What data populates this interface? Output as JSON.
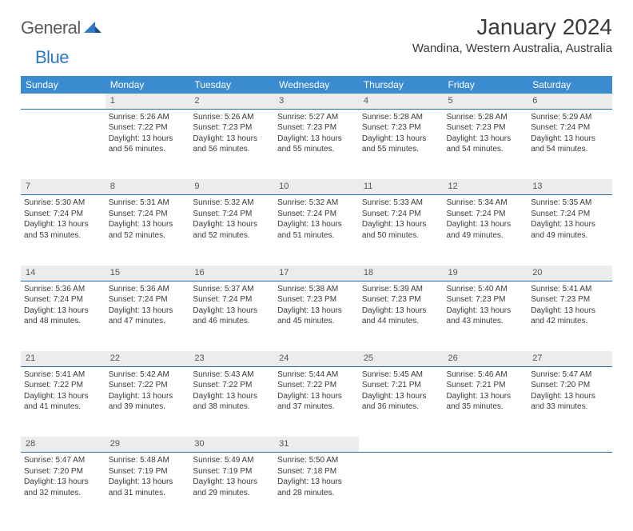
{
  "logo": {
    "text1": "General",
    "text2": "Blue"
  },
  "title": "January 2024",
  "subtitle": "Wandina, Western Australia, Australia",
  "colors": {
    "header_bg": "#3a8bd0",
    "header_text": "#ffffff",
    "daynum_bg": "#ececec",
    "row_border": "#2d6ea8",
    "logo_blue": "#2d78c6",
    "logo_gray": "#5a5a5a",
    "text": "#3a3a3a"
  },
  "day_headers": [
    "Sunday",
    "Monday",
    "Tuesday",
    "Wednesday",
    "Thursday",
    "Friday",
    "Saturday"
  ],
  "weeks": [
    {
      "numbers": [
        "",
        "1",
        "2",
        "3",
        "4",
        "5",
        "6"
      ],
      "cells": [
        null,
        {
          "sunrise": "Sunrise: 5:26 AM",
          "sunset": "Sunset: 7:22 PM",
          "day1": "Daylight: 13 hours",
          "day2": "and 56 minutes."
        },
        {
          "sunrise": "Sunrise: 5:26 AM",
          "sunset": "Sunset: 7:23 PM",
          "day1": "Daylight: 13 hours",
          "day2": "and 56 minutes."
        },
        {
          "sunrise": "Sunrise: 5:27 AM",
          "sunset": "Sunset: 7:23 PM",
          "day1": "Daylight: 13 hours",
          "day2": "and 55 minutes."
        },
        {
          "sunrise": "Sunrise: 5:28 AM",
          "sunset": "Sunset: 7:23 PM",
          "day1": "Daylight: 13 hours",
          "day2": "and 55 minutes."
        },
        {
          "sunrise": "Sunrise: 5:28 AM",
          "sunset": "Sunset: 7:23 PM",
          "day1": "Daylight: 13 hours",
          "day2": "and 54 minutes."
        },
        {
          "sunrise": "Sunrise: 5:29 AM",
          "sunset": "Sunset: 7:24 PM",
          "day1": "Daylight: 13 hours",
          "day2": "and 54 minutes."
        }
      ]
    },
    {
      "numbers": [
        "7",
        "8",
        "9",
        "10",
        "11",
        "12",
        "13"
      ],
      "cells": [
        {
          "sunrise": "Sunrise: 5:30 AM",
          "sunset": "Sunset: 7:24 PM",
          "day1": "Daylight: 13 hours",
          "day2": "and 53 minutes."
        },
        {
          "sunrise": "Sunrise: 5:31 AM",
          "sunset": "Sunset: 7:24 PM",
          "day1": "Daylight: 13 hours",
          "day2": "and 52 minutes."
        },
        {
          "sunrise": "Sunrise: 5:32 AM",
          "sunset": "Sunset: 7:24 PM",
          "day1": "Daylight: 13 hours",
          "day2": "and 52 minutes."
        },
        {
          "sunrise": "Sunrise: 5:32 AM",
          "sunset": "Sunset: 7:24 PM",
          "day1": "Daylight: 13 hours",
          "day2": "and 51 minutes."
        },
        {
          "sunrise": "Sunrise: 5:33 AM",
          "sunset": "Sunset: 7:24 PM",
          "day1": "Daylight: 13 hours",
          "day2": "and 50 minutes."
        },
        {
          "sunrise": "Sunrise: 5:34 AM",
          "sunset": "Sunset: 7:24 PM",
          "day1": "Daylight: 13 hours",
          "day2": "and 49 minutes."
        },
        {
          "sunrise": "Sunrise: 5:35 AM",
          "sunset": "Sunset: 7:24 PM",
          "day1": "Daylight: 13 hours",
          "day2": "and 49 minutes."
        }
      ]
    },
    {
      "numbers": [
        "14",
        "15",
        "16",
        "17",
        "18",
        "19",
        "20"
      ],
      "cells": [
        {
          "sunrise": "Sunrise: 5:36 AM",
          "sunset": "Sunset: 7:24 PM",
          "day1": "Daylight: 13 hours",
          "day2": "and 48 minutes."
        },
        {
          "sunrise": "Sunrise: 5:36 AM",
          "sunset": "Sunset: 7:24 PM",
          "day1": "Daylight: 13 hours",
          "day2": "and 47 minutes."
        },
        {
          "sunrise": "Sunrise: 5:37 AM",
          "sunset": "Sunset: 7:24 PM",
          "day1": "Daylight: 13 hours",
          "day2": "and 46 minutes."
        },
        {
          "sunrise": "Sunrise: 5:38 AM",
          "sunset": "Sunset: 7:23 PM",
          "day1": "Daylight: 13 hours",
          "day2": "and 45 minutes."
        },
        {
          "sunrise": "Sunrise: 5:39 AM",
          "sunset": "Sunset: 7:23 PM",
          "day1": "Daylight: 13 hours",
          "day2": "and 44 minutes."
        },
        {
          "sunrise": "Sunrise: 5:40 AM",
          "sunset": "Sunset: 7:23 PM",
          "day1": "Daylight: 13 hours",
          "day2": "and 43 minutes."
        },
        {
          "sunrise": "Sunrise: 5:41 AM",
          "sunset": "Sunset: 7:23 PM",
          "day1": "Daylight: 13 hours",
          "day2": "and 42 minutes."
        }
      ]
    },
    {
      "numbers": [
        "21",
        "22",
        "23",
        "24",
        "25",
        "26",
        "27"
      ],
      "cells": [
        {
          "sunrise": "Sunrise: 5:41 AM",
          "sunset": "Sunset: 7:22 PM",
          "day1": "Daylight: 13 hours",
          "day2": "and 41 minutes."
        },
        {
          "sunrise": "Sunrise: 5:42 AM",
          "sunset": "Sunset: 7:22 PM",
          "day1": "Daylight: 13 hours",
          "day2": "and 39 minutes."
        },
        {
          "sunrise": "Sunrise: 5:43 AM",
          "sunset": "Sunset: 7:22 PM",
          "day1": "Daylight: 13 hours",
          "day2": "and 38 minutes."
        },
        {
          "sunrise": "Sunrise: 5:44 AM",
          "sunset": "Sunset: 7:22 PM",
          "day1": "Daylight: 13 hours",
          "day2": "and 37 minutes."
        },
        {
          "sunrise": "Sunrise: 5:45 AM",
          "sunset": "Sunset: 7:21 PM",
          "day1": "Daylight: 13 hours",
          "day2": "and 36 minutes."
        },
        {
          "sunrise": "Sunrise: 5:46 AM",
          "sunset": "Sunset: 7:21 PM",
          "day1": "Daylight: 13 hours",
          "day2": "and 35 minutes."
        },
        {
          "sunrise": "Sunrise: 5:47 AM",
          "sunset": "Sunset: 7:20 PM",
          "day1": "Daylight: 13 hours",
          "day2": "and 33 minutes."
        }
      ]
    },
    {
      "numbers": [
        "28",
        "29",
        "30",
        "31",
        "",
        "",
        ""
      ],
      "cells": [
        {
          "sunrise": "Sunrise: 5:47 AM",
          "sunset": "Sunset: 7:20 PM",
          "day1": "Daylight: 13 hours",
          "day2": "and 32 minutes."
        },
        {
          "sunrise": "Sunrise: 5:48 AM",
          "sunset": "Sunset: 7:19 PM",
          "day1": "Daylight: 13 hours",
          "day2": "and 31 minutes."
        },
        {
          "sunrise": "Sunrise: 5:49 AM",
          "sunset": "Sunset: 7:19 PM",
          "day1": "Daylight: 13 hours",
          "day2": "and 29 minutes."
        },
        {
          "sunrise": "Sunrise: 5:50 AM",
          "sunset": "Sunset: 7:18 PM",
          "day1": "Daylight: 13 hours",
          "day2": "and 28 minutes."
        },
        null,
        null,
        null
      ]
    }
  ]
}
